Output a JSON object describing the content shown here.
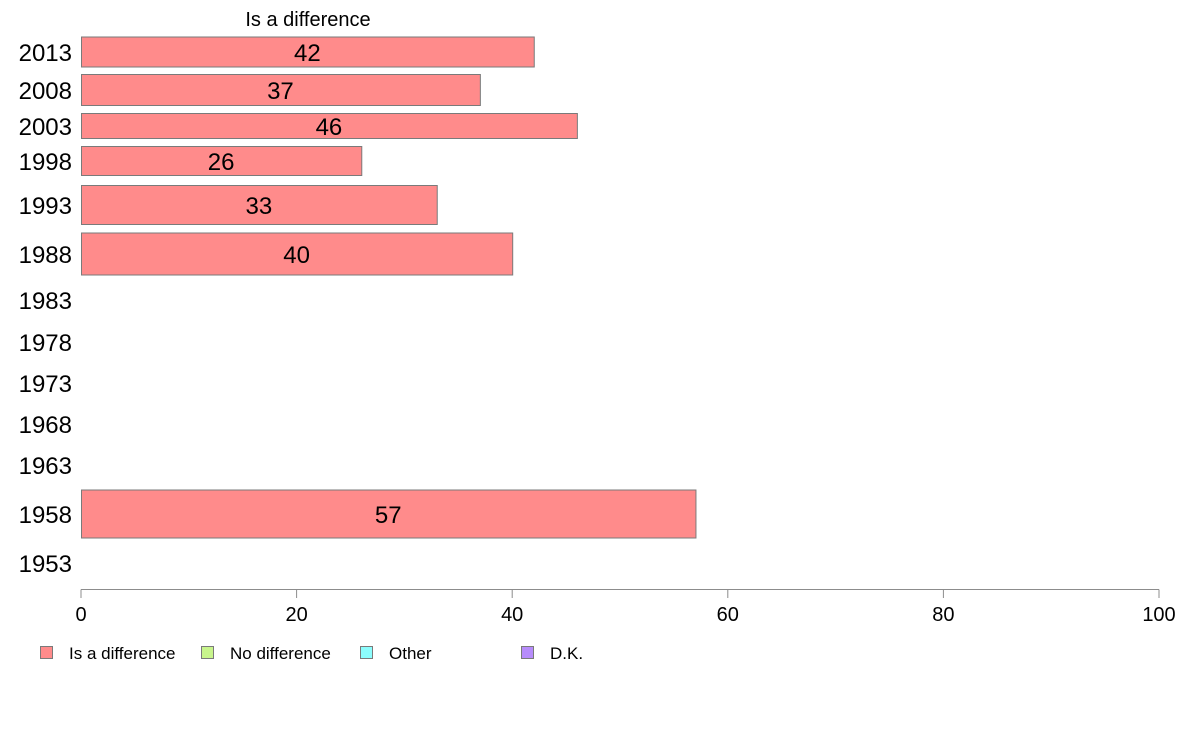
{
  "chart_data": {
    "type": "bar",
    "orientation": "horizontal",
    "title": "Is a difference",
    "xlabel": "",
    "ylabel": "",
    "xlim": [
      0,
      100
    ],
    "x_ticks": [
      "0",
      "20",
      "40",
      "60",
      "80",
      "100"
    ],
    "categories": [
      "2013",
      "2008",
      "2003",
      "1998",
      "1993",
      "1988",
      "1983",
      "1978",
      "1973",
      "1968",
      "1963",
      "1958",
      "1953"
    ],
    "series": [
      {
        "name": "Is a difference",
        "color": "#ff8b8b",
        "values": [
          42,
          37,
          46,
          26,
          33,
          40,
          null,
          null,
          null,
          null,
          null,
          57,
          null
        ]
      }
    ],
    "legend": {
      "placement": "bottom",
      "items": [
        {
          "label": "Is a difference",
          "color": "#ff8b8b"
        },
        {
          "label": "No difference",
          "color": "#c8f58c"
        },
        {
          "label": "Other",
          "color": "#8cfdfd"
        },
        {
          "label": "D.K.",
          "color": "#b78cfb"
        }
      ]
    },
    "grid": false
  }
}
